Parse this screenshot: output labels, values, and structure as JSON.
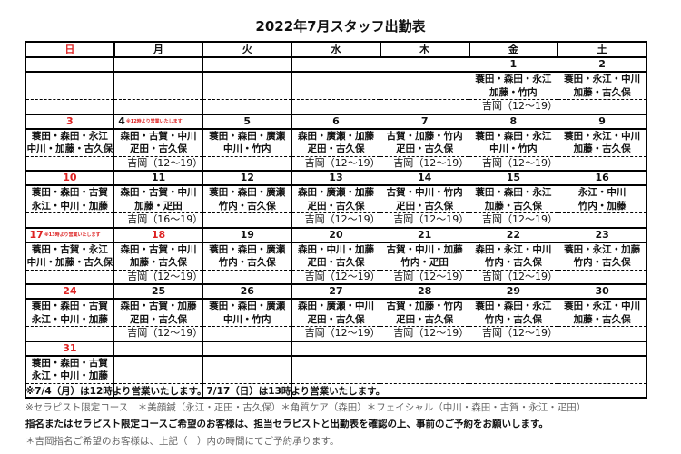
{
  "title": "2022年7月スタッフ出勤表",
  "weekdays": [
    "日",
    "月",
    "火",
    "水",
    "木",
    "金",
    "土"
  ],
  "holiday_color": "#dd2222",
  "weeks": [
    [
      {},
      {},
      {},
      {},
      {},
      {
        "date": "1",
        "lines": [
          "蓑田・森田・永江",
          "加藤・竹内"
        ],
        "yoshioka": "吉岡（12～19）"
      },
      {
        "date": "2",
        "lines": [
          "蓑田・永江・中川",
          "加藤・古久保"
        ]
      }
    ],
    [
      {
        "date": "3",
        "red": true,
        "lines": [
          "蓑田・森田・永江",
          "中川・加藤・古久保"
        ]
      },
      {
        "date": "4",
        "note": "※12時より営業いたします",
        "lines": [
          "森田・古賀・中川",
          "疋田・古久保"
        ],
        "yoshioka": "吉岡（12～19）"
      },
      {
        "date": "5",
        "lines": [
          "蓑田・森田・廣瀬",
          "中川・竹内"
        ]
      },
      {
        "date": "6",
        "lines": [
          "森田・廣瀬・加藤",
          "疋田・古久保"
        ],
        "yoshioka": "吉岡（12～19）"
      },
      {
        "date": "7",
        "lines": [
          "古賀・加藤・竹内",
          "疋田・古久保"
        ],
        "yoshioka": "吉岡（12～19）"
      },
      {
        "date": "8",
        "lines": [
          "蓑田・森田・永江",
          "中川・竹内"
        ],
        "yoshioka": "吉岡（12～19）"
      },
      {
        "date": "9",
        "lines": [
          "蓑田・永江・中川",
          "加藤・古久保"
        ]
      }
    ],
    [
      {
        "date": "10",
        "red": true,
        "lines": [
          "蓑田・森田・古賀",
          "永江・中川・加藤"
        ]
      },
      {
        "date": "11",
        "lines": [
          "森田・古賀・中川",
          "加藤・疋田"
        ],
        "yoshioka": "吉岡（16～19）"
      },
      {
        "date": "12",
        "lines": [
          "蓑田・森田・廣瀬",
          "竹内・古久保"
        ]
      },
      {
        "date": "13",
        "lines": [
          "森田・廣瀬・加藤",
          "疋田・古久保"
        ],
        "yoshioka": "吉岡（12～19）"
      },
      {
        "date": "14",
        "lines": [
          "古賀・中川・竹内",
          "疋田・古久保"
        ],
        "yoshioka": "吉岡（12～19）"
      },
      {
        "date": "15",
        "lines": [
          "蓑田・森田・永江",
          "加藤・古久保"
        ],
        "yoshioka": "吉岡（12～19）"
      },
      {
        "date": "16",
        "lines": [
          "永江・中川",
          "竹内・加藤"
        ]
      }
    ],
    [
      {
        "date": "17",
        "red": true,
        "note": "※13時より営業いたします",
        "lines": [
          "蓑田・古賀・永江",
          "中川・加藤・古久保"
        ]
      },
      {
        "date": "18",
        "red": true,
        "lines": [
          "森田・古賀・中川",
          "加藤・古久保"
        ],
        "yoshioka": "吉岡（12～19）"
      },
      {
        "date": "19",
        "lines": [
          "蓑田・森田・廣瀬",
          "竹内・古久保"
        ]
      },
      {
        "date": "20",
        "lines": [
          "森田・中川・加藤",
          "疋田・古久保"
        ],
        "yoshioka": "吉岡（12～19）"
      },
      {
        "date": "21",
        "lines": [
          "古賀・中川・加藤",
          "竹内・疋田"
        ],
        "yoshioka": "吉岡（12～19）"
      },
      {
        "date": "22",
        "lines": [
          "森田・永江・中川",
          "竹内・古久保"
        ],
        "yoshioka": "吉岡（12～19）"
      },
      {
        "date": "23",
        "lines": [
          "蓑田・永江・加藤",
          "竹内・古久保"
        ]
      }
    ],
    [
      {
        "date": "24",
        "red": true,
        "lines": [
          "蓑田・森田・古賀",
          "永江・中川・加藤"
        ]
      },
      {
        "date": "25",
        "lines": [
          "森田・古賀・加藤",
          "疋田・古久保"
        ],
        "yoshioka": "吉岡（12～19）"
      },
      {
        "date": "26",
        "lines": [
          "蓑田・森田・廣瀬",
          "中川・竹内"
        ]
      },
      {
        "date": "27",
        "lines": [
          "森田・廣瀬・中川",
          "疋田・古久保"
        ],
        "yoshioka": "吉岡（12～19）"
      },
      {
        "date": "28",
        "lines": [
          "古賀・加藤・竹内",
          "疋田・古久保"
        ],
        "yoshioka": "吉岡（12～19）"
      },
      {
        "date": "29",
        "lines": [
          "蓑田・森田・永江",
          "竹内・古久保"
        ],
        "yoshioka": "吉岡（12～19）"
      },
      {
        "date": "30",
        "lines": [
          "蓑田・永江・中川",
          "加藤・古久保"
        ]
      }
    ],
    [
      {
        "date": "31",
        "red": true,
        "lines": [
          "蓑田・森田・古賀",
          "永江・中川・加藤"
        ]
      },
      {},
      {},
      {},
      {},
      {},
      {}
    ]
  ],
  "footer": {
    "line1": "※7/4（月）は12時より営業いたします。7/17（日）は13時より営業いたします。",
    "line2": "※セラピスト限定コース　＊美顔鍼（永江・疋田・古久保）＊角質ケア（森田）＊フェイシャル（中川・森田・古賀・永江・疋田）",
    "line3": "指名またはセラピスト限定コースご希望のお客様は、担当セラピストと出勤表を確認の上、事前のご予約をお願いします。",
    "line4": "＊吉岡指名ご希望のお客様は、上記（　）内の時間にてご予約承ります。"
  }
}
